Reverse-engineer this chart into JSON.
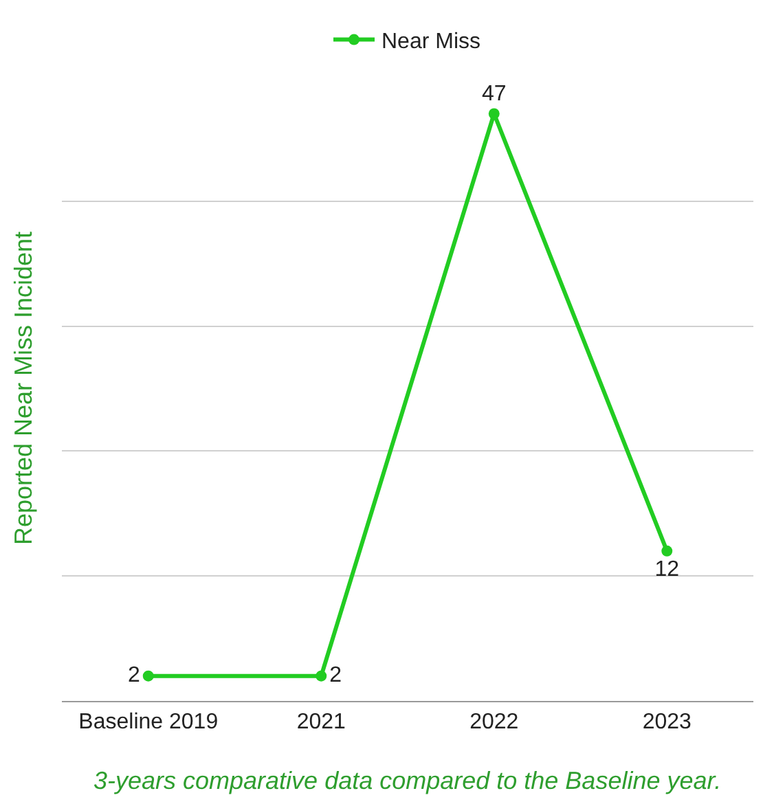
{
  "chart_data": {
    "type": "line",
    "ylabel": "Reported Near Miss Incident",
    "categories": [
      "Baseline 2019",
      "2021",
      "2022",
      "2023"
    ],
    "series": [
      {
        "name": "Near Miss",
        "color": "#22cc22",
        "values": [
          2,
          2,
          47,
          12
        ]
      }
    ],
    "tick_labels": "x",
    "grid": "y",
    "legend": "top",
    "marker": "circle",
    "line_style": "solid",
    "data_labels": true,
    "annotations": [
      "3-years comparative data compared to the Baseline year."
    ]
  }
}
